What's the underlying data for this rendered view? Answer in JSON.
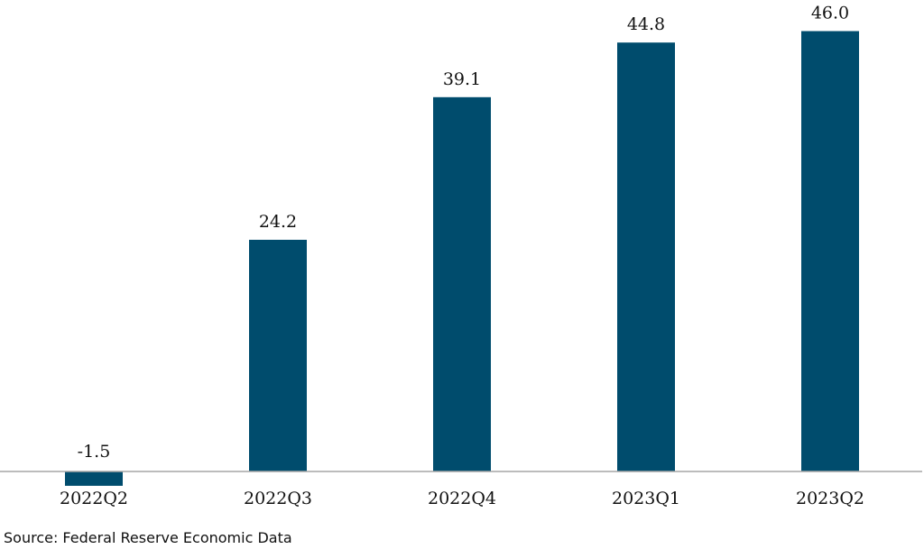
{
  "chart_data": {
    "type": "bar",
    "categories": [
      "2022Q2",
      "2022Q3",
      "2022Q4",
      "2023Q1",
      "2023Q2"
    ],
    "values": [
      -1.5,
      24.2,
      39.1,
      44.8,
      46.0
    ],
    "data_labels": [
      "-1.5",
      "24.2",
      "39.1",
      "44.8",
      "46.0"
    ],
    "title": "",
    "xlabel": "",
    "ylabel": "",
    "grid": false,
    "legend": "none",
    "bar_color": "#004c6d",
    "axis_color": "#a6a6a6"
  },
  "source": "Source: Federal Reserve Economic Data"
}
